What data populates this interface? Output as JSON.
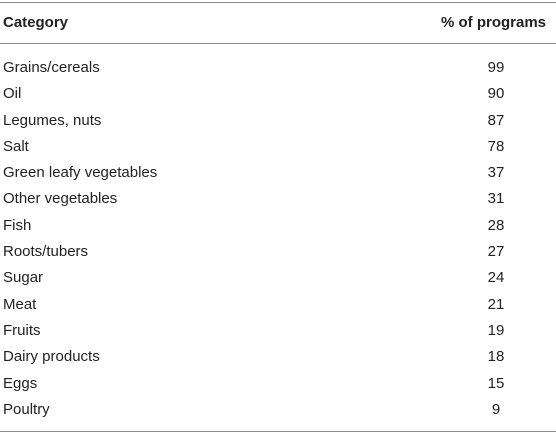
{
  "table": {
    "headers": {
      "category": "Category",
      "percent": "% of programs"
    },
    "rows": [
      {
        "category": "Grains/cereals",
        "percent": "99"
      },
      {
        "category": "Oil",
        "percent": "90"
      },
      {
        "category": "Legumes, nuts",
        "percent": "87"
      },
      {
        "category": "Salt",
        "percent": "78"
      },
      {
        "category": "Green leafy vegetables",
        "percent": "37"
      },
      {
        "category": "Other vegetables",
        "percent": "31"
      },
      {
        "category": "Fish",
        "percent": "28"
      },
      {
        "category": "Roots/tubers",
        "percent": "27"
      },
      {
        "category": "Sugar",
        "percent": "24"
      },
      {
        "category": "Meat",
        "percent": "21"
      },
      {
        "category": "Fruits",
        "percent": "19"
      },
      {
        "category": "Dairy products",
        "percent": "18"
      },
      {
        "category": "Eggs",
        "percent": "15"
      },
      {
        "category": "Poultry",
        "percent": "9"
      }
    ]
  }
}
